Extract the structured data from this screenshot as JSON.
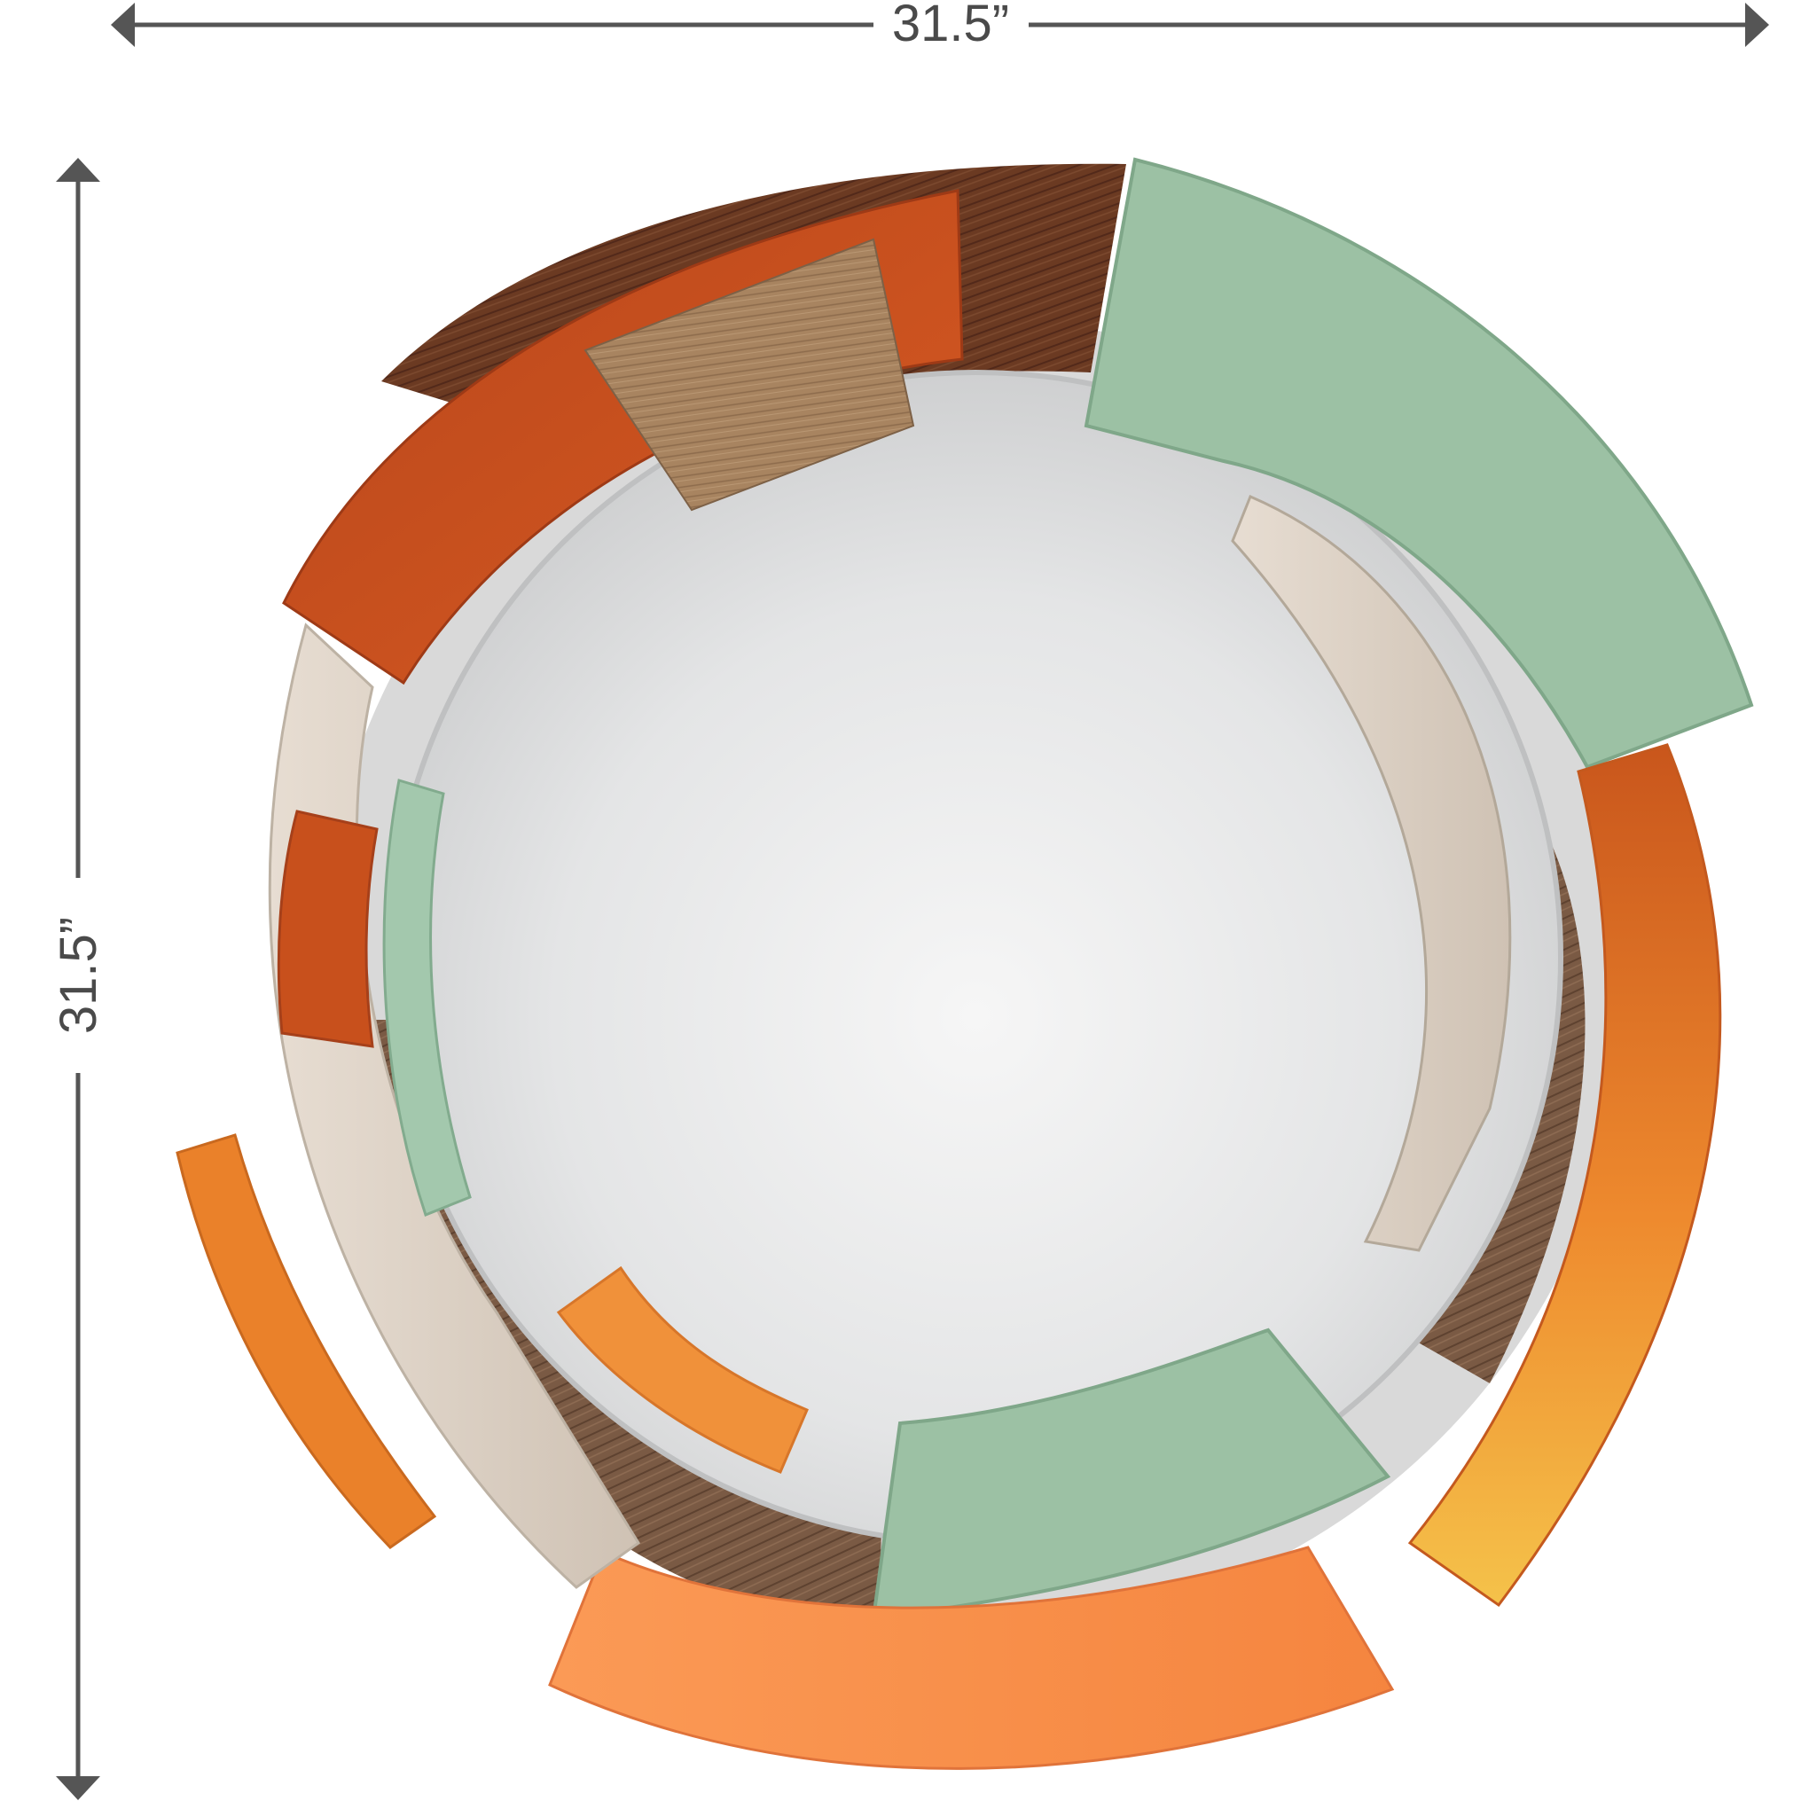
{
  "dimensions": {
    "width_label": "31.5”",
    "height_label": "31.5”",
    "line_color": "#555555"
  },
  "mirror": {
    "glass_color": "#e6e7e8",
    "segments": [
      {
        "name": "walnut-wood-top",
        "material": "wood",
        "color": "#6b3a22"
      },
      {
        "name": "rust-orange-top-left",
        "material": "mirror",
        "color": "#c4521f"
      },
      {
        "name": "light-wood-tile-top",
        "material": "wood",
        "color": "#a88460"
      },
      {
        "name": "sage-green-top-right",
        "material": "mirror",
        "color": "#9cc1a4"
      },
      {
        "name": "champagne-inner-right",
        "material": "mirror",
        "color": "#d7ccbf"
      },
      {
        "name": "wood-right",
        "material": "wood",
        "color": "#8b6b52"
      },
      {
        "name": "orange-gradient-right",
        "material": "mirror",
        "color": "#e98a2c"
      },
      {
        "name": "sage-green-bottom",
        "material": "mirror",
        "color": "#9cc1a4"
      },
      {
        "name": "peach-orange-bottom",
        "material": "mirror",
        "color": "#f7924a"
      },
      {
        "name": "wood-bottom-left",
        "material": "wood",
        "color": "#7a5a44"
      },
      {
        "name": "orange-inner-bottom-left",
        "material": "mirror",
        "color": "#f0913a"
      },
      {
        "name": "champagne-left",
        "material": "mirror",
        "color": "#ddd3c8"
      },
      {
        "name": "orange-outer-left",
        "material": "mirror",
        "color": "#ea812a"
      },
      {
        "name": "rust-small-left",
        "material": "mirror",
        "color": "#c8501c"
      },
      {
        "name": "sage-green-inner-left",
        "material": "mirror",
        "color": "#a3c8ad"
      }
    ]
  }
}
